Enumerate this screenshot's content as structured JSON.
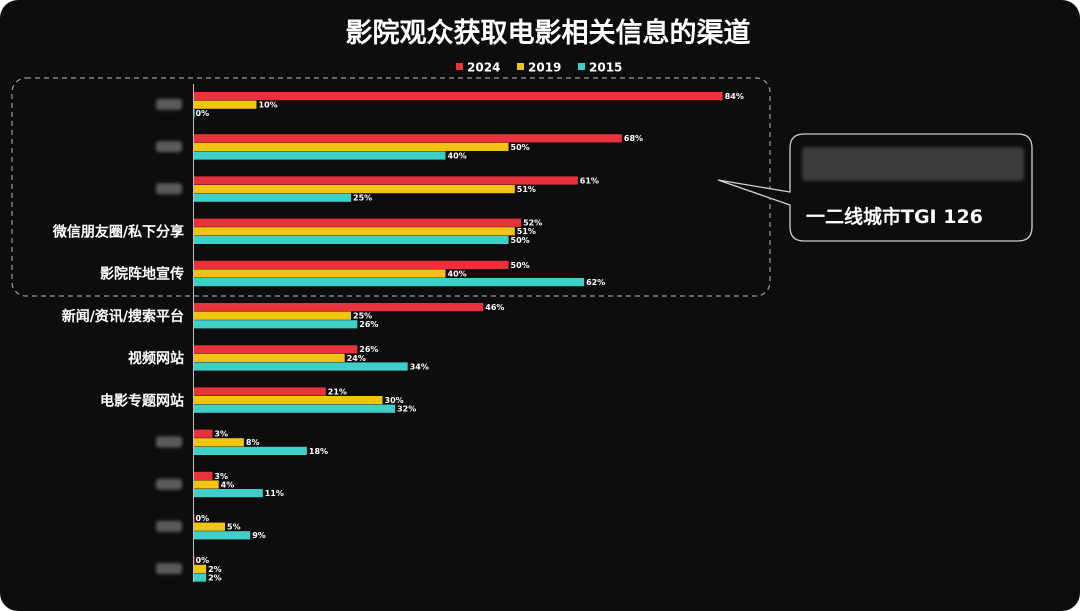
{
  "chart_data": {
    "type": "bar",
    "orientation": "horizontal",
    "title": "影院观众获取电影相关信息的渠道",
    "legend_position": "top",
    "categories": [
      "",
      "",
      "",
      "微信朋友圈/私下分享",
      "影院阵地宣传",
      "新闻/资讯/搜索平台",
      "视频网站",
      "电影专题网站",
      "",
      "",
      "",
      ""
    ],
    "value_suffix": "%",
    "xlim": [
      0,
      100
    ],
    "series": [
      {
        "name": "2024",
        "color": "#e8323c",
        "values": [
          84,
          68,
          61,
          52,
          50,
          46,
          26,
          21,
          3,
          3,
          0,
          0
        ]
      },
      {
        "name": "2019",
        "color": "#f2c40f",
        "values": [
          10,
          50,
          51,
          51,
          40,
          25,
          24,
          30,
          8,
          4,
          5,
          2
        ]
      },
      {
        "name": "2015",
        "color": "#3ecfc8",
        "values": [
          0,
          40,
          25,
          50,
          62,
          26,
          34,
          32,
          18,
          11,
          9,
          2
        ]
      }
    ],
    "annotations": [
      {
        "text": "一二线城市TGI 126",
        "highlighted_categories": [
          0,
          1,
          2,
          3,
          4
        ]
      }
    ]
  }
}
